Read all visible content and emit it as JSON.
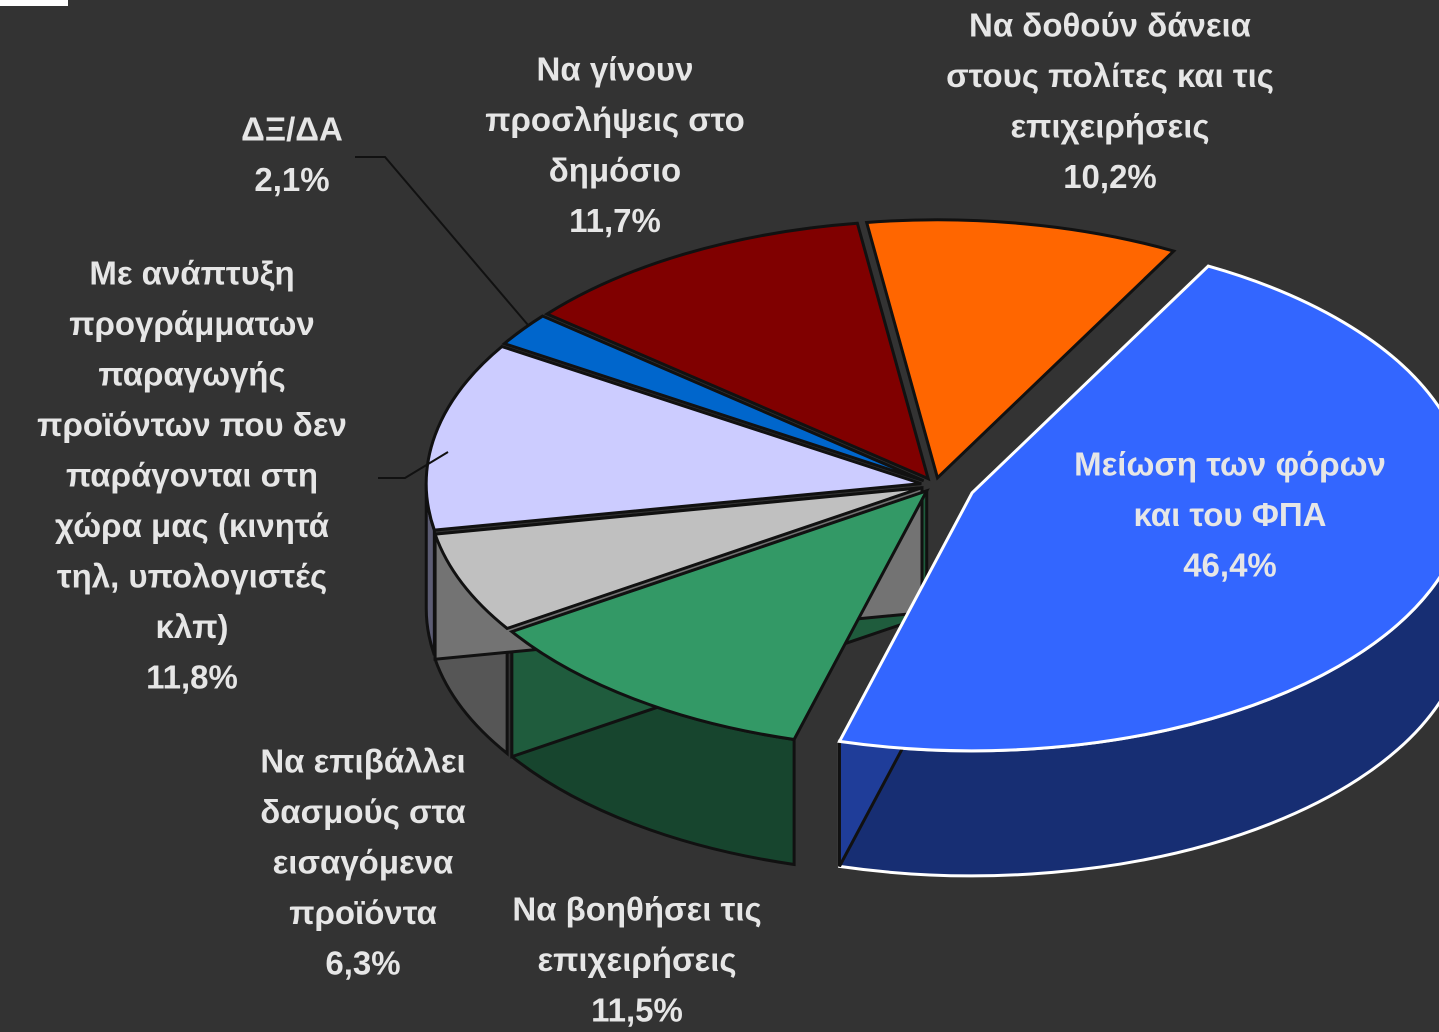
{
  "chart_data": {
    "type": "pie3d",
    "categories": [
      [
        "Μείωση των φόρων",
        "και του ΦΠΑ"
      ],
      [
        "Να βοηθήσει τις",
        "επιχειρήσεις"
      ],
      [
        "Να επιβάλλει",
        "δασμούς στα",
        "εισαγόμενα",
        "προϊόντα"
      ],
      [
        "Με ανάπτυξη",
        "προγράμματων",
        "παραγωγής",
        "προϊόντων που δεν",
        "παράγονται στη",
        "χώρα μας (κινητά",
        "τηλ, υπολογιστές",
        "κλπ)"
      ],
      [
        "ΔΞ/ΔΑ"
      ],
      [
        "Να γίνουν",
        "προσλήψεις στο",
        "δημόσιο"
      ],
      [
        "Να δοθούν δάνεια",
        "στους πολίτες και τις",
        "επιχειρήσεις"
      ]
    ],
    "values": [
      46.4,
      11.5,
      6.3,
      11.8,
      2.1,
      11.7,
      10.2
    ],
    "value_labels": [
      "46,4%",
      "11,5%",
      "6,3%",
      "11,8%",
      "2,1%",
      "11,7%",
      "10,2%"
    ],
    "colors": [
      "#3366ff",
      "#339966",
      "#c0c0c0",
      "#ccccff",
      "#0066cc",
      "#800000",
      "#ff6600"
    ]
  }
}
